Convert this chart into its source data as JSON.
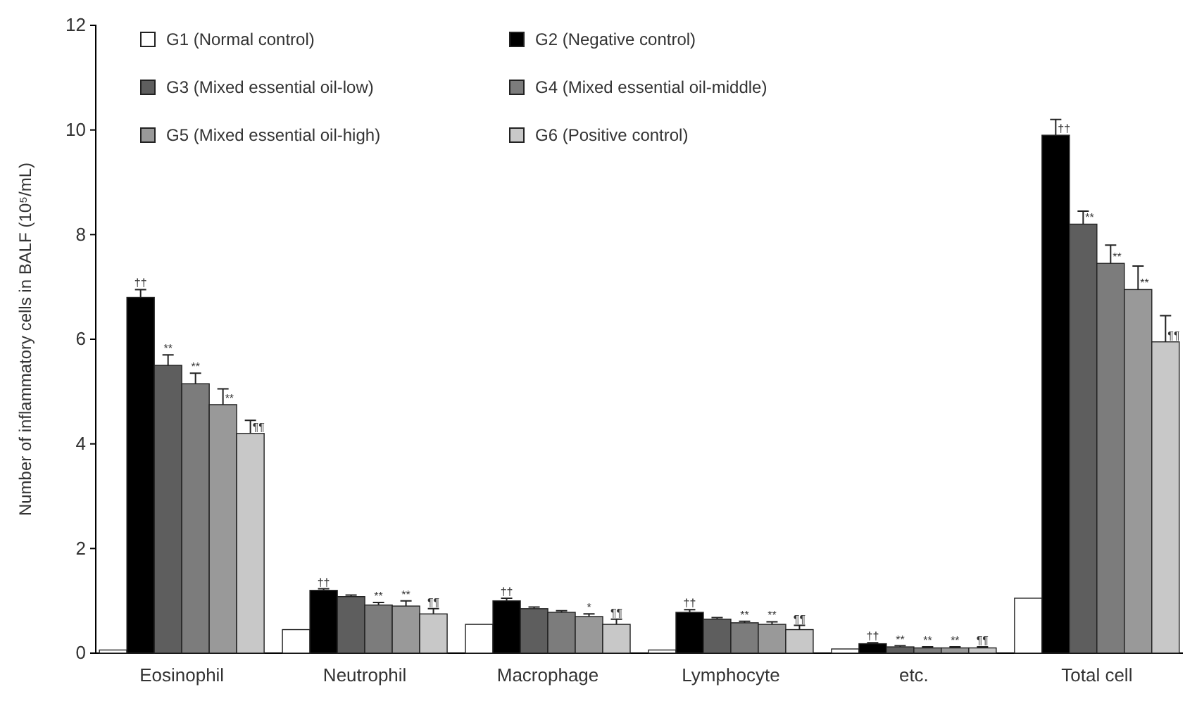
{
  "chart_data": {
    "type": "bar",
    "ylabel": "Number of inflammatory cells in BALF (10⁵/mL)",
    "categories": [
      "Eosinophil",
      "Neutrophil",
      "Macrophage",
      "Lymphocyte",
      "etc.",
      "Total cell"
    ],
    "ylim": [
      0,
      12
    ],
    "yticks": [
      0,
      2,
      4,
      6,
      8,
      10,
      12
    ],
    "legend": "top",
    "grid": false,
    "series": [
      {
        "name": "G1 (Normal  control)",
        "color": "#ffffff",
        "values": [
          0.06,
          0.45,
          0.55,
          0.06,
          0.08,
          1.05
        ],
        "errors": [
          null,
          null,
          null,
          null,
          null,
          null
        ],
        "value_labels": [
          null,
          null,
          null,
          null,
          null,
          null
        ]
      },
      {
        "name": "G2 (Negative  control)",
        "color": "#000000",
        "values": [
          6.8,
          1.2,
          1.0,
          0.78,
          0.18,
          9.9
        ],
        "errors": [
          0.15,
          0.03,
          0.05,
          0.05,
          0.02,
          0.3
        ],
        "value_labels": [
          "††",
          "††",
          "††",
          "††",
          "††",
          "††"
        ]
      },
      {
        "name": "G3 (Mixed essential oil-low)",
        "color": "#5e5e5e",
        "values": [
          5.5,
          1.08,
          0.85,
          0.65,
          0.12,
          8.2
        ],
        "errors": [
          0.2,
          0.03,
          0.03,
          0.03,
          0.02,
          0.25
        ],
        "value_labels": [
          "**",
          null,
          null,
          null,
          "**",
          "**"
        ]
      },
      {
        "name": "G4 (Mixed essential oil-middle)",
        "color": "#7c7c7c",
        "values": [
          5.15,
          0.92,
          0.78,
          0.58,
          0.1,
          7.45
        ],
        "errors": [
          0.2,
          0.05,
          0.03,
          0.03,
          0.02,
          0.35
        ],
        "value_labels": [
          "**",
          "**",
          null,
          "**",
          "**",
          "**"
        ]
      },
      {
        "name": "G5 (Mixed essential oil-high)",
        "color": "#999999",
        "values": [
          4.75,
          0.9,
          0.7,
          0.55,
          0.1,
          6.95
        ],
        "errors": [
          0.3,
          0.1,
          0.05,
          0.05,
          0.02,
          0.45
        ],
        "value_labels": [
          "**",
          "**",
          "*",
          "**",
          "**",
          "**"
        ]
      },
      {
        "name": "G6 (Positive control)",
        "color": "#c8c8c8",
        "values": [
          4.2,
          0.75,
          0.55,
          0.45,
          0.1,
          5.95
        ],
        "errors": [
          0.25,
          0.1,
          0.1,
          0.08,
          0.02,
          0.5
        ],
        "value_labels": [
          "¶¶",
          "¶¶",
          "¶¶",
          "¶¶",
          "¶¶",
          "¶¶"
        ]
      }
    ]
  }
}
